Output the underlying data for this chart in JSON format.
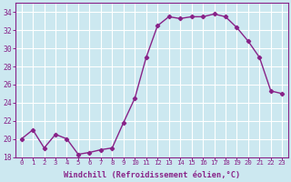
{
  "x": [
    0,
    1,
    2,
    3,
    4,
    5,
    6,
    7,
    8,
    9,
    10,
    11,
    12,
    13,
    14,
    15,
    16,
    17,
    18,
    19,
    20,
    21,
    22,
    23
  ],
  "y": [
    20,
    21,
    19,
    20.5,
    20,
    18.3,
    18.5,
    18.8,
    19.0,
    21.8,
    24.5,
    29,
    32.5,
    33.5,
    33.3,
    33.5,
    33.5,
    33.8,
    33.5,
    32.3,
    30.8,
    29,
    25.3,
    25
  ],
  "line_color": "#882288",
  "marker": "D",
  "marker_size": 2.2,
  "bg_color": "#cce8f0",
  "grid_color": "#ffffff",
  "xlabel": "Windchill (Refroidissement éolien,°C)",
  "xlabel_color": "#882288",
  "tick_color": "#882288",
  "ylim": [
    18,
    35
  ],
  "xlim": [
    -0.5,
    23.5
  ],
  "yticks": [
    18,
    20,
    22,
    24,
    26,
    28,
    30,
    32,
    34
  ],
  "xticks": [
    0,
    1,
    2,
    3,
    4,
    5,
    6,
    7,
    8,
    9,
    10,
    11,
    12,
    13,
    14,
    15,
    16,
    17,
    18,
    19,
    20,
    21,
    22,
    23
  ],
  "xtick_labels": [
    "0",
    "1",
    "2",
    "3",
    "4",
    "5",
    "6",
    "7",
    "8",
    "9",
    "10",
    "11",
    "12",
    "13",
    "14",
    "15",
    "16",
    "17",
    "18",
    "19",
    "20",
    "21",
    "22",
    "23"
  ],
  "linewidth": 1.0
}
